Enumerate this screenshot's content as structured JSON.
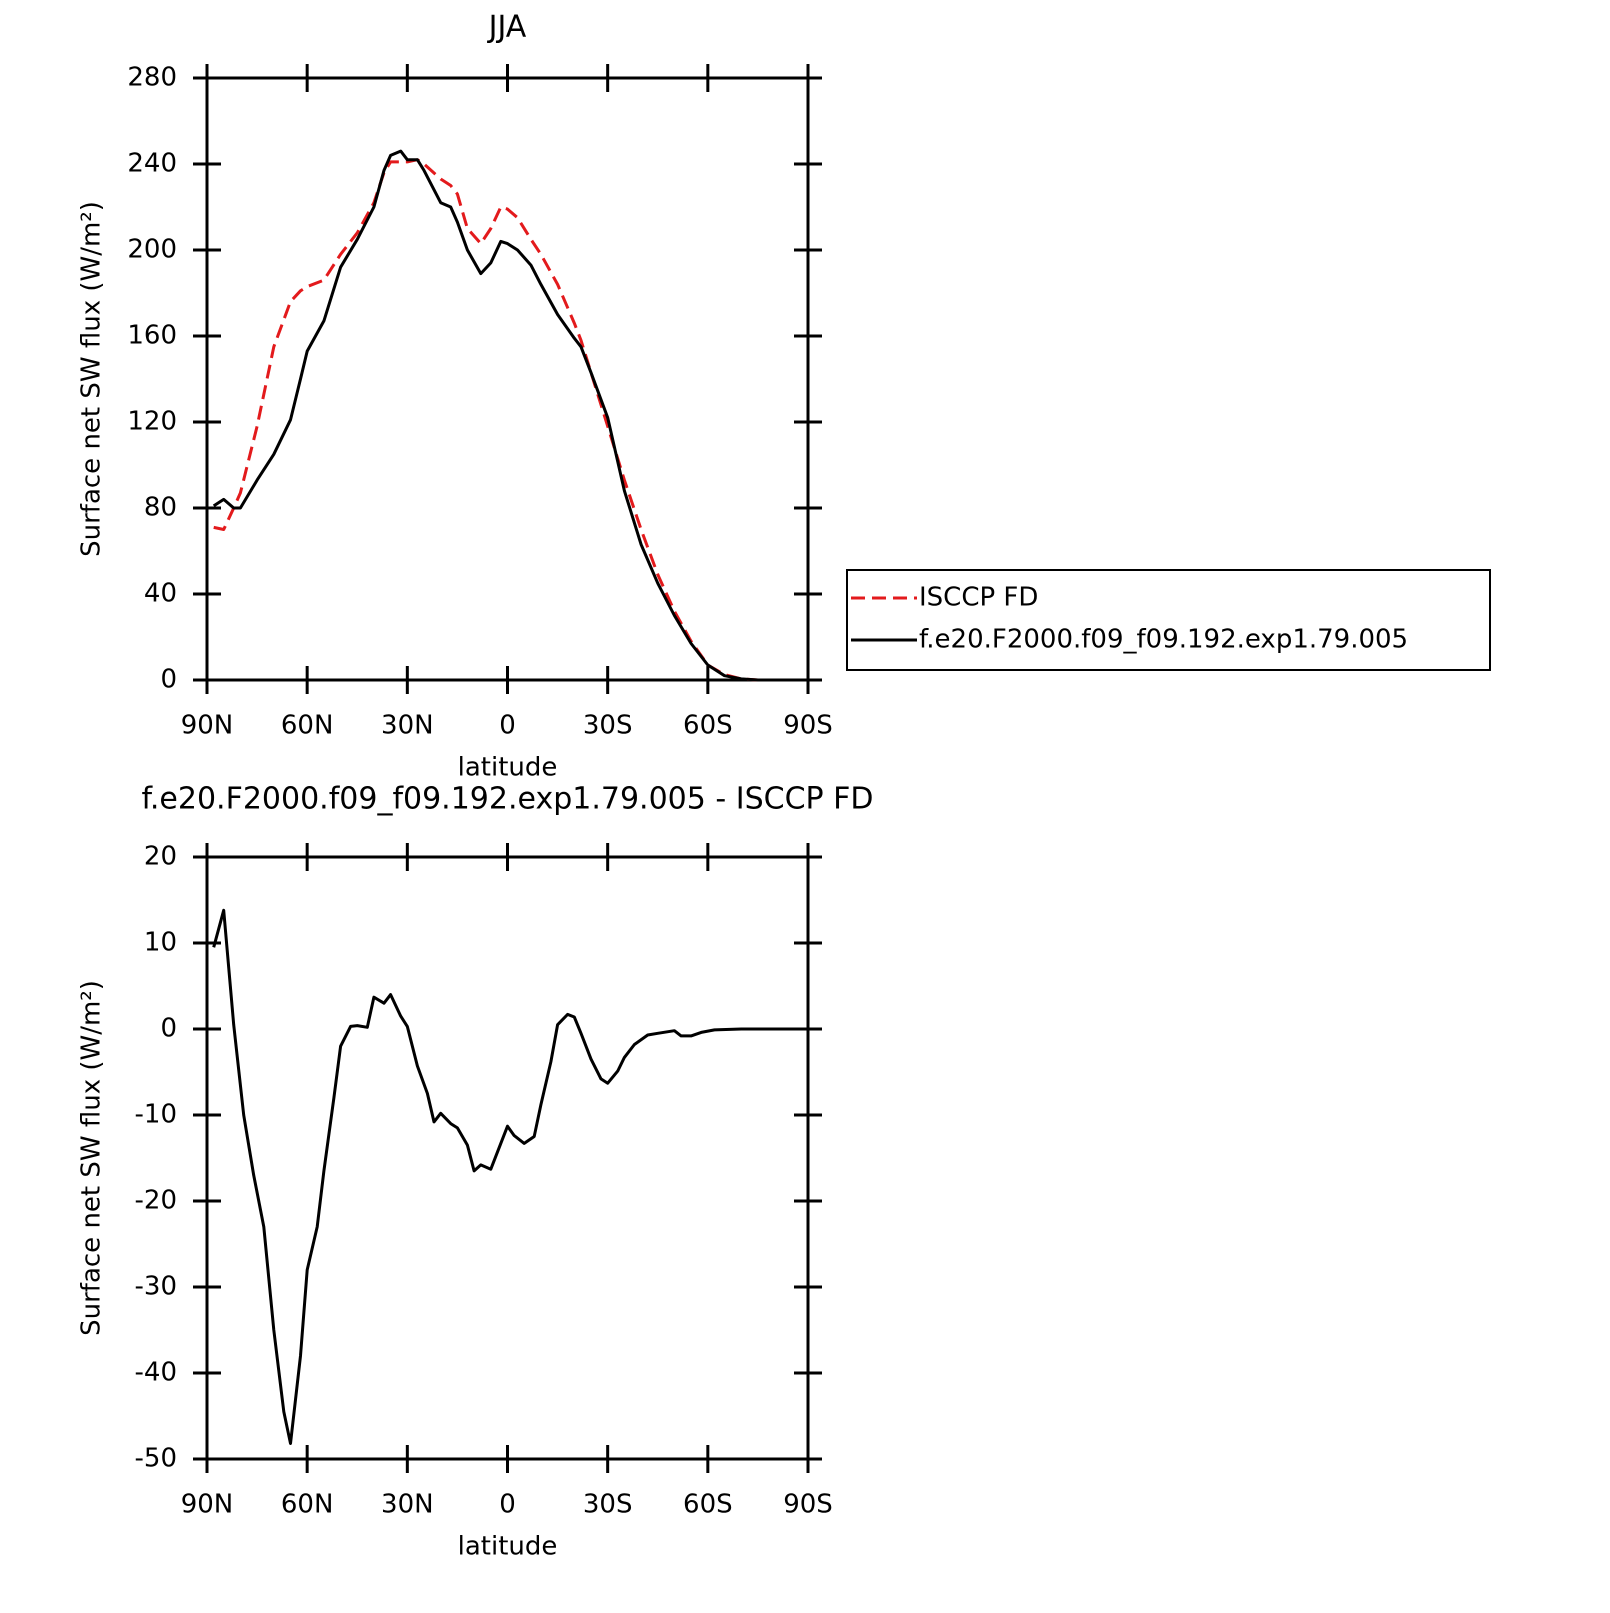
{
  "chart_data": [
    {
      "type": "line",
      "title": "JJA",
      "x_label": "latitude",
      "y_label": "Surface net SW flux (W/m²)",
      "x": [
        88,
        85,
        82,
        80,
        75,
        70,
        65,
        62,
        60,
        55,
        50,
        45,
        40,
        37,
        35,
        32,
        30,
        27,
        25,
        20,
        17,
        15,
        12,
        8,
        5,
        2,
        0,
        -3,
        -7,
        -10,
        -15,
        -20,
        -22,
        -25,
        -30,
        -35,
        -40,
        -45,
        -50,
        -55,
        -60,
        -65,
        -70,
        -75,
        -80,
        -85,
        -89
      ],
      "series": [
        {
          "name": "ISCCP FD",
          "color": "#e31a1c",
          "dashed": true,
          "values": [
            71,
            70,
            80,
            87,
            118,
            155,
            176,
            181,
            183,
            186,
            198,
            208,
            222,
            236,
            241,
            241,
            241,
            242,
            240,
            233,
            230,
            226,
            210,
            203,
            210,
            220,
            219,
            215,
            205,
            198,
            184,
            166,
            158,
            143,
            118,
            93,
            70,
            49,
            32,
            18,
            7,
            2.5,
            0.5,
            0,
            0,
            0,
            0
          ]
        },
        {
          "name": "f.e20.F2000.f09_f09.192.exp1.79.005",
          "color": "#000000",
          "dashed": false,
          "values": [
            81,
            84,
            80,
            80,
            93,
            105,
            121,
            140,
            153,
            167,
            192,
            205,
            220,
            237,
            244,
            246,
            242,
            242,
            237,
            222,
            220,
            213,
            200,
            189,
            194,
            204,
            203,
            200,
            193,
            184,
            170,
            159,
            155,
            143,
            122,
            88,
            63,
            45,
            30,
            17,
            7,
            2,
            0.5,
            0,
            0,
            0,
            0
          ]
        }
      ],
      "xlim": [
        90,
        -90
      ],
      "xticks": [
        {
          "value": 90,
          "label": "90N"
        },
        {
          "value": 60,
          "label": "60N"
        },
        {
          "value": 30,
          "label": "30N"
        },
        0,
        {
          "value": -30,
          "label": "30S"
        },
        {
          "value": -60,
          "label": "60S"
        },
        {
          "value": -90,
          "label": "90S"
        }
      ],
      "ylim": [
        0,
        280
      ],
      "yticks": [
        0,
        40,
        80,
        120,
        160,
        200,
        240,
        280
      ],
      "legend": "right"
    },
    {
      "type": "line",
      "title": "f.e20.F2000.f09_f09.192.exp1.79.005 - ISCCP FD",
      "x_label": "latitude",
      "y_label": "Surface net SW flux (W/m²)",
      "x": [
        88,
        85,
        82,
        79,
        76,
        73,
        70,
        67,
        65,
        62,
        60,
        57,
        55,
        52,
        50,
        47,
        45,
        42,
        40,
        37,
        35,
        32,
        30,
        27,
        24,
        22,
        20,
        17,
        15,
        12,
        10,
        8,
        5,
        2,
        0,
        -2,
        -5,
        -8,
        -10,
        -13,
        -15,
        -18,
        -20,
        -22,
        -25,
        -28,
        -30,
        -33,
        -35,
        -38,
        -42,
        -45,
        -50,
        -52,
        -55,
        -58,
        -62,
        -70,
        -80,
        -88
      ],
      "color": "#000000",
      "values": [
        9.5,
        13.8,
        0.5,
        -10,
        -17,
        -23,
        -35,
        -44.5,
        -48.2,
        -38,
        -28,
        -23,
        -16.5,
        -8,
        -2,
        0.3,
        0.4,
        0.2,
        3.7,
        3,
        4,
        1.5,
        0.3,
        -4.3,
        -7.5,
        -10.8,
        -9.8,
        -11,
        -11.5,
        -13.5,
        -16.5,
        -15.8,
        -16.3,
        -13.3,
        -11.3,
        -12.4,
        -13.3,
        -12.5,
        -8.8,
        -3.8,
        0.5,
        1.7,
        1.4,
        -0.5,
        -3.5,
        -5.8,
        -6.3,
        -4.9,
        -3.3,
        -1.8,
        -0.7,
        -0.5,
        -0.2,
        -0.8,
        -0.8,
        -0.4,
        -0.1,
        0,
        0,
        0
      ],
      "xlim": [
        90,
        -90
      ],
      "xticks": [
        {
          "value": 90,
          "label": "90N"
        },
        {
          "value": 60,
          "label": "60N"
        },
        {
          "value": 30,
          "label": "30N"
        },
        0,
        {
          "value": -30,
          "label": "30S"
        },
        {
          "value": -60,
          "label": "60S"
        },
        {
          "value": -90,
          "label": "90S"
        }
      ],
      "ylim": [
        -50,
        20
      ],
      "yticks": [
        -50,
        -40,
        -30,
        -20,
        -10,
        0,
        10,
        20
      ]
    }
  ]
}
